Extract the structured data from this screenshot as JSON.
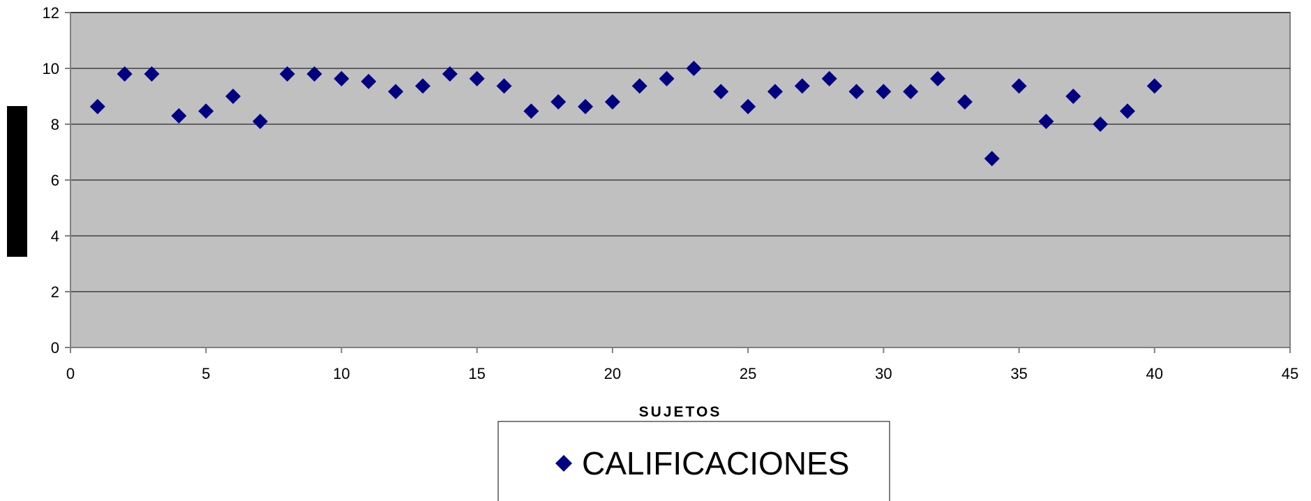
{
  "chart_data": {
    "type": "scatter",
    "title": "",
    "xlabel": "SUJETOS",
    "ylabel": "",
    "xlim": [
      0,
      45
    ],
    "ylim": [
      0,
      12
    ],
    "xticks": [
      "0",
      "5",
      "10",
      "15",
      "20",
      "25",
      "30",
      "35",
      "40",
      "45"
    ],
    "yticks": [
      "0",
      "2",
      "4",
      "6",
      "8",
      "10",
      "12"
    ],
    "grid": "horizontal",
    "legend_position": "bottom",
    "colors": {
      "plot_bg": "#c0c0c0",
      "marker": "#000080",
      "grid": "#000000"
    },
    "series": [
      {
        "name": "CALIFICACIONES",
        "marker": "diamond",
        "x": [
          1,
          2,
          3,
          4,
          5,
          6,
          7,
          8,
          9,
          10,
          11,
          12,
          13,
          14,
          15,
          16,
          17,
          18,
          19,
          20,
          21,
          22,
          23,
          24,
          25,
          26,
          27,
          28,
          29,
          30,
          31,
          32,
          33,
          34,
          35,
          36,
          37,
          38,
          39,
          40
        ],
        "y": [
          8.63,
          9.8,
          9.8,
          8.3,
          8.47,
          9.0,
          8.1,
          9.8,
          9.8,
          9.63,
          9.53,
          9.17,
          9.37,
          9.8,
          9.63,
          9.37,
          8.47,
          8.8,
          8.63,
          8.8,
          9.37,
          9.63,
          10.0,
          9.17,
          8.63,
          9.17,
          9.37,
          9.63,
          9.17,
          9.17,
          9.17,
          9.63,
          8.8,
          6.77,
          9.37,
          8.1,
          9.0,
          8.0,
          8.47,
          9.37
        ]
      }
    ]
  }
}
